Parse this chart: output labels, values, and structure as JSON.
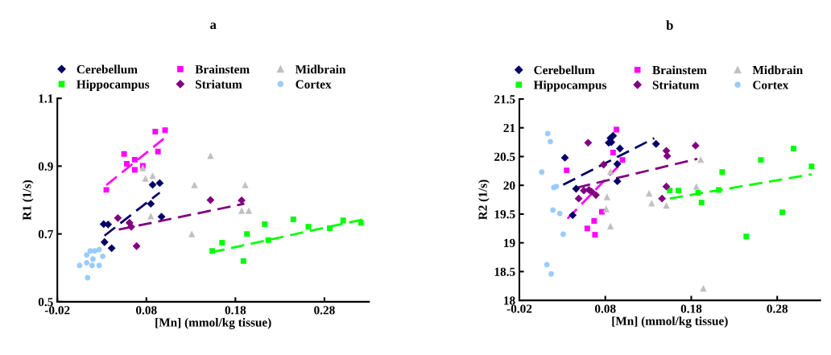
{
  "chart_data": [
    {
      "type": "scatter",
      "title": "a",
      "xlabel": "[Mn] (mmol/kg tissue)",
      "ylabel": "R1 (1/s)",
      "xlim": [
        -0.02,
        0.33
      ],
      "xticks": [
        -0.02,
        0.08,
        0.18,
        0.28
      ],
      "ylim": [
        0.5,
        1.1
      ],
      "yticks": [
        0.5,
        0.7,
        0.9,
        1.1
      ],
      "grid": false,
      "legend": "top",
      "series": [
        {
          "name": "Cerebellum",
          "color": "#000066",
          "marker": "diamond",
          "x": [
            0.032,
            0.037,
            0.033,
            0.041,
            0.085,
            0.087,
            0.095,
            0.097
          ],
          "values": [
            0.729,
            0.728,
            0.676,
            0.658,
            0.789,
            0.845,
            0.85,
            0.751
          ]
        },
        {
          "name": "Brainstem",
          "color": "#ff00ff",
          "marker": "square",
          "x": [
            0.09,
            0.101,
            0.055,
            0.058,
            0.067,
            0.067,
            0.076,
            0.093,
            0.035
          ],
          "values": [
            1.002,
            1.006,
            0.936,
            0.907,
            0.919,
            0.889,
            0.901,
            0.943,
            0.83
          ]
        },
        {
          "name": "Midbrain",
          "color": "#c0c0c0",
          "marker": "triangle",
          "x": [
            0.152,
            0.076,
            0.079,
            0.087,
            0.134,
            0.191,
            0.085,
            0.187,
            0.195,
            0.131
          ],
          "values": [
            0.931,
            0.895,
            0.864,
            0.872,
            0.845,
            0.845,
            0.753,
            0.769,
            0.769,
            0.7
          ]
        },
        {
          "name": "Hippocampus",
          "color": "#00ff00",
          "marker": "square",
          "x": [
            0.154,
            0.165,
            0.193,
            0.189,
            0.213,
            0.217,
            0.245,
            0.262,
            0.286,
            0.301,
            0.321
          ],
          "values": [
            0.65,
            0.674,
            0.7,
            0.62,
            0.729,
            0.682,
            0.743,
            0.721,
            0.717,
            0.74,
            0.733
          ]
        },
        {
          "name": "Striatum",
          "color": "#800080",
          "marker": "diamond",
          "x": [
            0.048,
            0.061,
            0.063,
            0.069,
            0.152,
            0.187
          ],
          "values": [
            0.747,
            0.733,
            0.721,
            0.664,
            0.8,
            0.799
          ]
        },
        {
          "name": "Cortex",
          "color": "#99ccff",
          "marker": "circle",
          "x": [
            0.005,
            0.014,
            0.013,
            0.017,
            0.022,
            0.027,
            0.013,
            0.019,
            0.027,
            0.02,
            0.031
          ],
          "values": [
            0.607,
            0.571,
            0.638,
            0.65,
            0.65,
            0.654,
            0.615,
            0.607,
            0.607,
            0.626,
            0.634
          ]
        },
        {
          "type": "line",
          "line_style": "dashed",
          "color": "#000066",
          "x": [
            0.033,
            0.095
          ],
          "values": [
            0.695,
            0.822
          ]
        },
        {
          "type": "line",
          "line_style": "dashed",
          "color": "#ff00ff",
          "x": [
            0.035,
            0.1
          ],
          "values": [
            0.844,
            0.982
          ]
        },
        {
          "type": "line",
          "line_style": "dashed",
          "color": "#00ff00",
          "x": [
            0.153,
            0.324
          ],
          "values": [
            0.646,
            0.743
          ]
        },
        {
          "type": "line",
          "line_style": "dashed",
          "color": "#800080",
          "x": [
            0.049,
            0.19
          ],
          "values": [
            0.713,
            0.789
          ]
        }
      ]
    },
    {
      "type": "scatter",
      "title": "b",
      "xlabel": "[Mn] (mmol/kg tissue)",
      "ylabel": "R2 (1/s)",
      "xlim": [
        -0.02,
        0.33
      ],
      "xticks": [
        -0.02,
        0.08,
        0.18,
        0.28
      ],
      "ylim": [
        18,
        21.5
      ],
      "yticks": [
        18,
        18.5,
        19,
        19.5,
        20,
        20.5,
        21,
        21.5
      ],
      "grid": false,
      "legend": "top",
      "series": [
        {
          "name": "Cerebellum",
          "color": "#000066",
          "marker": "diamond",
          "x": [
            0.033,
            0.046,
            0.042,
            0.086,
            0.089,
            0.087,
            0.084,
            0.097,
            0.094,
            0.094,
            0.139
          ],
          "values": [
            20.48,
            19.94,
            19.48,
            20.82,
            20.86,
            20.75,
            20.74,
            20.64,
            20.37,
            20.07,
            20.72
          ]
        },
        {
          "name": "Brainstem",
          "color": "#ff00ff",
          "marker": "square",
          "x": [
            0.035,
            0.093,
            0.089,
            0.1,
            0.059,
            0.067,
            0.068,
            0.076
          ],
          "values": [
            20.26,
            20.97,
            20.57,
            20.44,
            19.25,
            19.38,
            19.14,
            19.54
          ]
        },
        {
          "name": "Midbrain",
          "color": "#c0c0c0",
          "marker": "triangle",
          "x": [
            0.191,
            0.186,
            0.194,
            0.131,
            0.134,
            0.151,
            0.082,
            0.081,
            0.086,
            0.086
          ],
          "values": [
            20.45,
            19.98,
            18.21,
            19.86,
            19.69,
            19.65,
            19.8,
            19.59,
            19.29,
            20.24
          ]
        },
        {
          "name": "Hippocampus",
          "color": "#00ff00",
          "marker": "square",
          "x": [
            0.155,
            0.165,
            0.188,
            0.192,
            0.212,
            0.216,
            0.244,
            0.261,
            0.286,
            0.299,
            0.32
          ],
          "values": [
            19.91,
            19.91,
            19.87,
            19.7,
            19.92,
            20.23,
            19.11,
            20.44,
            19.53,
            20.64,
            20.33
          ]
        },
        {
          "name": "Striatum",
          "color": "#800080",
          "marker": "diamond",
          "x": [
            0.06,
            0.078,
            0.049,
            0.055,
            0.061,
            0.064,
            0.069,
            0.151,
            0.152,
            0.151,
            0.146,
            0.185
          ],
          "values": [
            20.74,
            20.36,
            19.77,
            19.91,
            19.92,
            19.89,
            19.83,
            20.6,
            20.51,
            19.98,
            19.77,
            20.69
          ]
        },
        {
          "name": "Cortex",
          "color": "#99ccff",
          "marker": "circle",
          "x": [
            0.006,
            0.013,
            0.016,
            0.02,
            0.023,
            0.019,
            0.027,
            0.031,
            0.012,
            0.017
          ],
          "values": [
            20.23,
            20.9,
            20.76,
            19.96,
            19.98,
            19.57,
            19.51,
            19.15,
            18.62,
            18.46
          ]
        },
        {
          "type": "line",
          "line_style": "dashed",
          "color": "#000066",
          "x": [
            0.031,
            0.137
          ],
          "values": [
            20.01,
            20.82
          ]
        },
        {
          "type": "line",
          "line_style": "dashed",
          "color": "#ff00ff",
          "x": [
            0.036,
            0.095
          ],
          "values": [
            19.42,
            20.33
          ]
        },
        {
          "type": "line",
          "line_style": "dashed",
          "color": "#00ff00",
          "x": [
            0.155,
            0.32
          ],
          "values": [
            19.77,
            20.19
          ]
        },
        {
          "type": "line",
          "line_style": "dashed",
          "color": "#800080",
          "x": [
            0.047,
            0.187
          ],
          "values": [
            19.96,
            20.46
          ]
        }
      ]
    }
  ]
}
